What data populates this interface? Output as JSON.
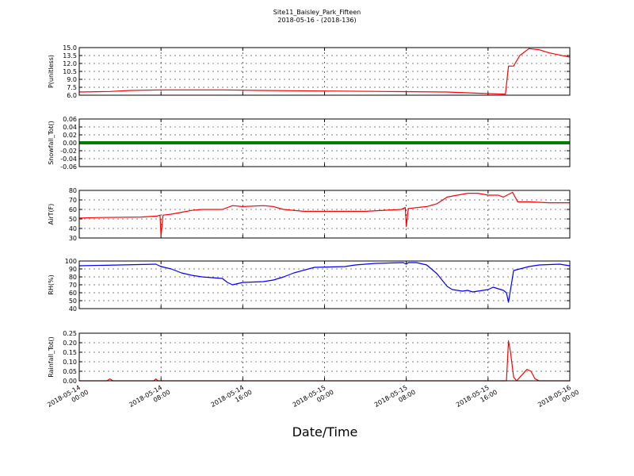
{
  "chart_data": {
    "type": "line",
    "title": "Site11_Baisley_Park_Fifteen",
    "subtitle": "2018-05-16 - (2018-136)",
    "xlabel": "Date/Time",
    "xlim": [
      "2018-05-14 00:00",
      "2018-05-16 00:00"
    ],
    "xticks": [
      "2018-05-14 00:00",
      "2018-05-14 08:00",
      "2018-05-14 16:00",
      "2018-05-15 00:00",
      "2018-05-15 08:00",
      "2018-05-15 16:00",
      "2018-05-16 00:00"
    ],
    "grid": true,
    "panels": [
      {
        "ylabel": "P(unitless)",
        "ylim": [
          6,
          15
        ],
        "yticks": [
          {
            "value": 6,
            "label": "6.0"
          },
          7.5,
          {
            "value": 9,
            "label": "9.0"
          },
          10.5,
          {
            "value": 12,
            "label": "12.0"
          },
          13.5,
          {
            "value": 15,
            "label": "15.0"
          }
        ],
        "series": [
          {
            "color": "#ff0000",
            "x": [
              "2018-05-14 00:00",
              "2018-05-14 03:00",
              "2018-05-14 05:00",
              "2018-05-14 08:00",
              "2018-05-14 14:00",
              "2018-05-14 18:00",
              "2018-05-15 00:00",
              "2018-05-15 06:00",
              "2018-05-15 12:00",
              "2018-05-15 16:00",
              "2018-05-15 17:42",
              "2018-05-15 18:00",
              "2018-05-15 18:30",
              "2018-05-15 19:06",
              "2018-05-15 20:00",
              "2018-05-15 21:00",
              "2018-05-15 22:00",
              "2018-05-15 23:00",
              "2018-05-16 00:00"
            ],
            "values": [
              6.6,
              6.7,
              6.9,
              7.0,
              7.0,
              6.9,
              6.8,
              6.7,
              6.6,
              6.3,
              6.2,
              11.5,
              11.5,
              13.5,
              14.8,
              14.6,
              14.0,
              13.6,
              13.2
            ]
          }
        ]
      },
      {
        "ylabel": "Snowfall_Tot()",
        "ylim": [
          -0.06,
          0.06
        ],
        "yticks": [
          -0.06,
          -0.04,
          -0.02,
          {
            "value": 0,
            "label": "0.00"
          },
          0.02,
          0.04,
          0.06
        ],
        "series": [
          {
            "color": "#008000",
            "x": [
              "2018-05-14 00:00",
              "2018-05-14 08:00",
              "2018-05-14 16:00",
              "2018-05-15 00:00",
              "2018-05-15 08:00",
              "2018-05-15 16:00",
              "2018-05-16 00:00"
            ],
            "values": [
              0,
              0,
              0,
              0,
              0,
              0,
              0
            ]
          }
        ]
      },
      {
        "ylabel": "AirT(F)",
        "ylim": [
          30,
          80
        ],
        "yticks": [
          30,
          40,
          50,
          60,
          70,
          80
        ],
        "series": [
          {
            "color": "#ff0000",
            "x": [
              "2018-05-14 00:00",
              "2018-05-14 02:00",
              "2018-05-14 06:00",
              "2018-05-14 07:36",
              "2018-05-14 07:54",
              "2018-05-14 08:00",
              "2018-05-14 08:12",
              "2018-05-14 09:00",
              "2018-05-14 10:00",
              "2018-05-14 11:00",
              "2018-05-14 12:00",
              "2018-05-14 14:00",
              "2018-05-14 15:00",
              "2018-05-14 16:00",
              "2018-05-14 18:00",
              "2018-05-14 19:00",
              "2018-05-14 20:00",
              "2018-05-14 22:00",
              "2018-05-15 04:00",
              "2018-05-15 07:30",
              "2018-05-15 07:54",
              "2018-05-15 08:00",
              "2018-05-15 08:12",
              "2018-05-15 10:00",
              "2018-05-15 11:00",
              "2018-05-15 12:00",
              "2018-05-15 13:00",
              "2018-05-15 14:00",
              "2018-05-15 15:00",
              "2018-05-15 16:00",
              "2018-05-15 17:00",
              "2018-05-15 17:30",
              "2018-05-15 18:24",
              "2018-05-15 18:54",
              "2018-05-15 20:00",
              "2018-05-15 22:00",
              "2018-05-16 00:00"
            ],
            "values": [
              51,
              51.5,
              52,
              53,
              54,
              32,
              54,
              55,
              57,
              59,
              60,
              60,
              64,
              63,
              64,
              63,
              60,
              58,
              58,
              60,
              62,
              42,
              61,
              63,
              66,
              73,
              75,
              77,
              77,
              75,
              75,
              73,
              78,
              68,
              68,
              67,
              67
            ]
          }
        ]
      },
      {
        "ylabel": "RH(%)",
        "ylim": [
          40,
          100
        ],
        "yticks": [
          40,
          50,
          60,
          70,
          80,
          90,
          100
        ],
        "series": [
          {
            "color": "#0000ff",
            "x": [
              "2018-05-14 00:00",
              "2018-05-14 04:00",
              "2018-05-14 07:30",
              "2018-05-14 08:00",
              "2018-05-14 09:00",
              "2018-05-14 10:00",
              "2018-05-14 11:00",
              "2018-05-14 12:00",
              "2018-05-14 14:00",
              "2018-05-14 14:30",
              "2018-05-14 15:00",
              "2018-05-14 16:00",
              "2018-05-14 18:00",
              "2018-05-14 19:00",
              "2018-05-14 20:00",
              "2018-05-14 21:00",
              "2018-05-14 23:00",
              "2018-05-15 02:00",
              "2018-05-15 03:00",
              "2018-05-15 05:00",
              "2018-05-15 07:42",
              "2018-05-15 08:00",
              "2018-05-15 08:12",
              "2018-05-15 09:00",
              "2018-05-15 10:00",
              "2018-05-15 11:00",
              "2018-05-15 12:00",
              "2018-05-15 12:30",
              "2018-05-15 13:30",
              "2018-05-15 14:00",
              "2018-05-15 14:30",
              "2018-05-15 16:00",
              "2018-05-15 16:30",
              "2018-05-15 17:30",
              "2018-05-15 17:48",
              "2018-05-15 18:00",
              "2018-05-15 18:30",
              "2018-05-15 20:00",
              "2018-05-15 21:00",
              "2018-05-15 23:00",
              "2018-05-16 00:00"
            ],
            "values": [
              94,
              95,
              96,
              93,
              90,
              85,
              82,
              80,
              78,
              73,
              70,
              73,
              74,
              76,
              80,
              85,
              92,
              93,
              95,
              97,
              98,
              96,
              98,
              98,
              95,
              84,
              68,
              64,
              62,
              63,
              61,
              64,
              67,
              63,
              60,
              48,
              88,
              93,
              95,
              96,
              94
            ]
          }
        ]
      },
      {
        "ylabel": "Rainfall_Tot()",
        "ylim": [
          0,
          0.25
        ],
        "yticks": [
          {
            "value": 0,
            "label": "0.00"
          },
          0.05,
          {
            "value": 0.1,
            "label": "0.10"
          },
          0.15,
          {
            "value": 0.2,
            "label": "0.20"
          },
          0.25
        ],
        "series": [
          {
            "color": "#ff0000",
            "x": [
              "2018-05-14 00:00",
              "2018-05-14 02:42",
              "2018-05-14 03:00",
              "2018-05-14 03:18",
              "2018-05-14 07:18",
              "2018-05-14 07:30",
              "2018-05-14 07:42",
              "2018-05-15 17:48",
              "2018-05-15 18:00",
              "2018-05-15 18:12",
              "2018-05-15 18:30",
              "2018-05-15 18:48",
              "2018-05-15 19:18",
              "2018-05-15 19:48",
              "2018-05-15 20:12",
              "2018-05-15 20:36",
              "2018-05-15 21:00",
              "2018-05-16 00:00"
            ],
            "values": [
              0,
              0,
              0.01,
              0,
              0,
              0.01,
              0,
              0,
              0.21,
              0.15,
              0.02,
              0,
              0.03,
              0.06,
              0.05,
              0.01,
              0,
              0
            ]
          }
        ]
      }
    ]
  }
}
